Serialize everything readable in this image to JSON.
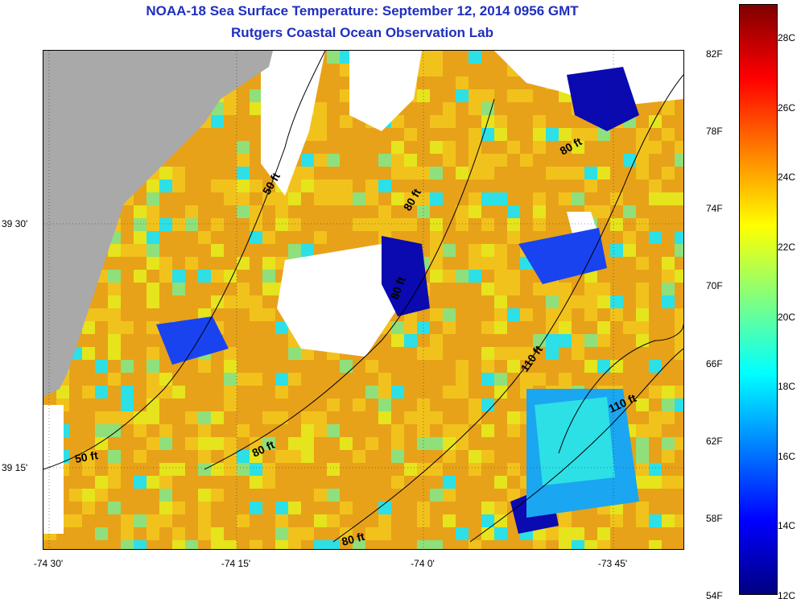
{
  "header": {
    "title": "NOAA-18 Sea Surface Temperature:  September 12, 2014 0956 GMT",
    "subtitle": "Rutgers Coastal Ocean Observation Lab"
  },
  "axes": {
    "latitude_labels": [
      "39 30'",
      "39 15'"
    ],
    "longitude_labels": [
      "-74 30'",
      "-74 15'",
      "-74 0'",
      "-73 45'"
    ]
  },
  "colorbar": {
    "fahrenheit_labels": [
      "82F",
      "78F",
      "74F",
      "70F",
      "66F",
      "62F",
      "58F",
      "54F"
    ],
    "celsius_labels": [
      "28C",
      "26C",
      "24C",
      "22C",
      "20C",
      "18C",
      "16C",
      "14C",
      "12C"
    ],
    "gradient_colors": [
      "#000080",
      "#0000ff",
      "#0080ff",
      "#00ffff",
      "#80ff80",
      "#ffff00",
      "#ff8000",
      "#ff0000",
      "#800000"
    ]
  },
  "map": {
    "contour_labels": [
      "50 ft",
      "80 ft",
      "80 ft",
      "80 ft",
      "110 ft",
      "110 ft",
      "50 ft",
      "80 ft",
      "80 ft"
    ],
    "land_color": "#a9a9a9",
    "no_data_color": "#ffffff",
    "ocean_palette": [
      "#e7a21a",
      "#f2c21c",
      "#e6e41c",
      "#8fe07a",
      "#2ce0e6",
      "#1aa6f0",
      "#1a43f0",
      "#0a0ab0"
    ]
  }
}
